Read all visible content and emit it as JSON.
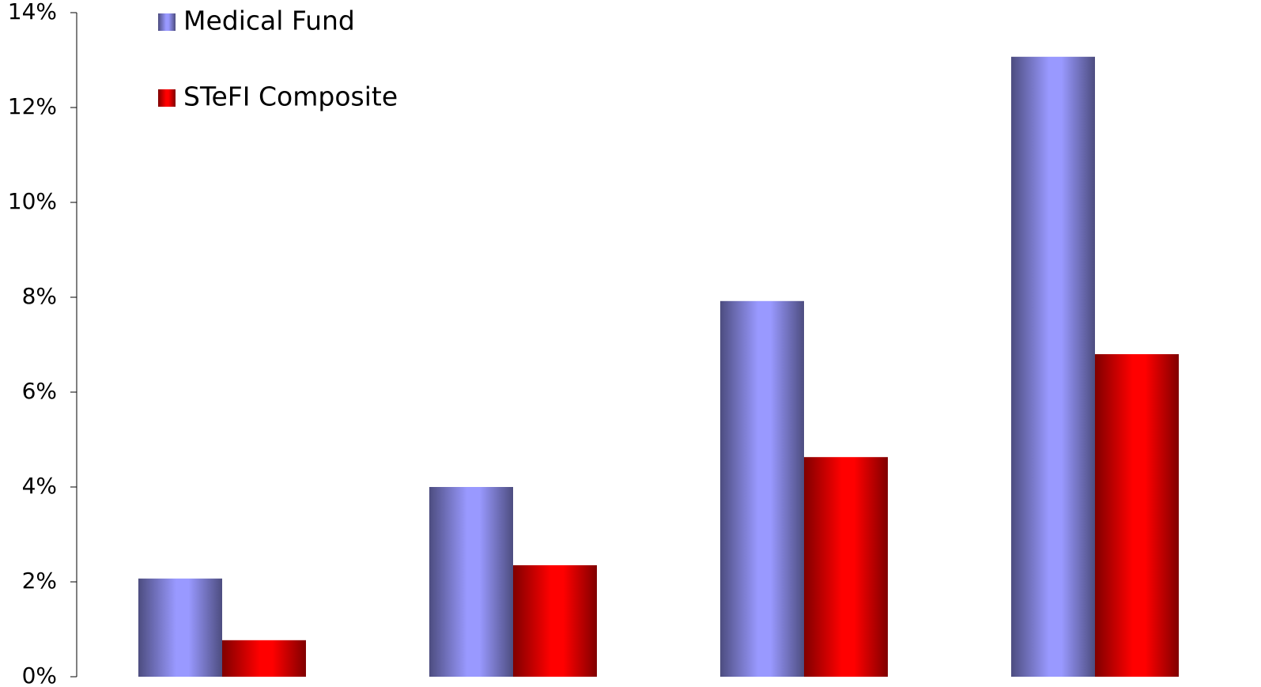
{
  "chart_data": {
    "type": "bar",
    "categories": [
      null,
      null,
      null,
      null
    ],
    "series": [
      {
        "name": "Medical Fund",
        "color": "#9999ff",
        "values": [
          2.07,
          4.0,
          7.92,
          13.07
        ]
      },
      {
        "name": "STeFI Composite",
        "color": "#ff0000",
        "values": [
          0.77,
          2.35,
          4.63,
          6.8
        ]
      }
    ],
    "ylim": [
      0,
      14
    ],
    "yticks": [
      {
        "value": 0,
        "label": "0%"
      },
      {
        "value": 2,
        "label": "2%"
      },
      {
        "value": 4,
        "label": "4%"
      },
      {
        "value": 6,
        "label": "6%"
      },
      {
        "value": 8,
        "label": "8%"
      },
      {
        "value": 10,
        "label": "10%"
      },
      {
        "value": 12,
        "label": "12%"
      },
      {
        "value": 14,
        "label": "14%"
      }
    ],
    "grid": false,
    "legend": "top-left"
  }
}
